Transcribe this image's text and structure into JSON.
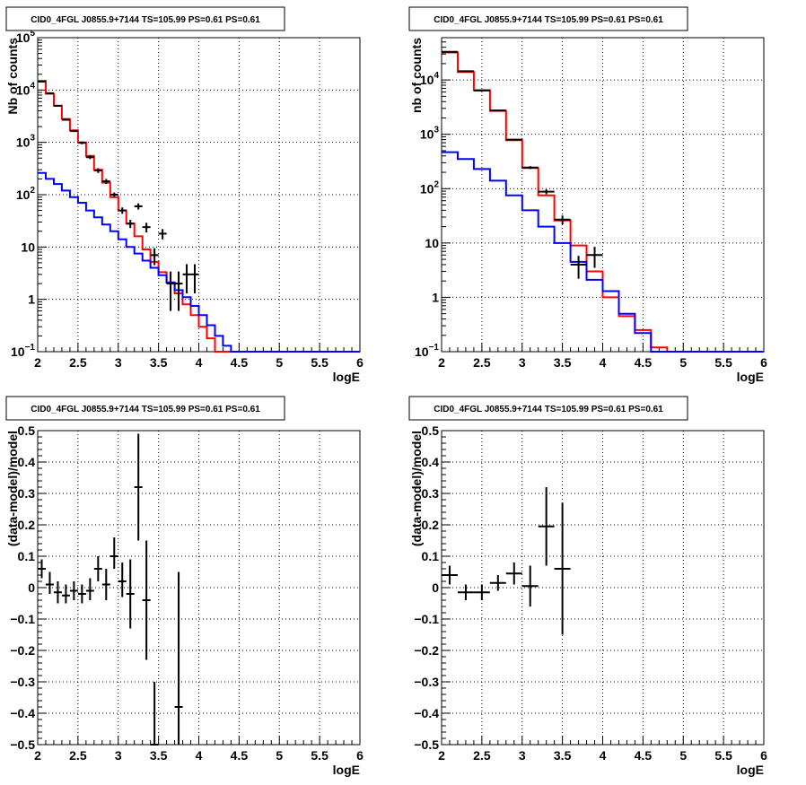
{
  "chart_data": [
    {
      "type": "line",
      "title": "CID0_4FGL J0855.9+7144 TS=105.99 PS=0.61 PS=0.61",
      "xlabel": "logE",
      "ylabel": "Nb of counts",
      "xlim": [
        2,
        6
      ],
      "ylim": [
        0.1,
        100000
      ],
      "yscale": "log",
      "grid": true,
      "xticks": [
        "2",
        "2.5",
        "3",
        "3.5",
        "4",
        "4.5",
        "5",
        "5.5",
        "6"
      ],
      "yticks": [
        {
          "v": 0.1,
          "base": "10",
          "exp": "−1"
        },
        {
          "v": 1,
          "label": "1"
        },
        {
          "v": 10,
          "label": "10"
        },
        {
          "v": 100,
          "base": "10",
          "exp": "2"
        },
        {
          "v": 1000,
          "base": "10",
          "exp": "3"
        },
        {
          "v": 10000,
          "base": "10",
          "exp": "4"
        },
        {
          "v": 100000,
          "base": "10",
          "exp": "5"
        }
      ],
      "series": [
        {
          "kind": "step",
          "color": "#ff0000",
          "edges": [
            2.0,
            2.1,
            2.2,
            2.3,
            2.4,
            2.5,
            2.6,
            2.7,
            2.8,
            2.9,
            3.0,
            3.1,
            3.2,
            3.3,
            3.4,
            3.5,
            3.6,
            3.7,
            3.8,
            3.9,
            4.0,
            4.1,
            4.2,
            4.3,
            4.4,
            4.5,
            4.6,
            4.7,
            4.8,
            4.9,
            5.0,
            5.1,
            5.2,
            5.3,
            5.4,
            5.5,
            5.6,
            5.7,
            5.8,
            5.9,
            6.0
          ],
          "values": [
            15000,
            8500,
            5000,
            2800,
            1700,
            1000,
            550,
            300,
            170,
            90,
            50,
            28,
            16,
            9,
            5.2,
            3.3,
            2.1,
            1.3,
            0.8,
            0.5,
            0.3,
            0.18,
            0.1,
            0.1,
            0.1,
            0.1,
            0.1,
            0.1,
            0.1,
            0.1,
            0.1,
            0.1,
            0.1,
            0.1,
            0.1,
            0.1,
            0.1,
            0.1,
            0.1,
            0.1
          ]
        },
        {
          "kind": "step",
          "color": "#0000ff",
          "edges": [
            2.0,
            2.1,
            2.2,
            2.3,
            2.4,
            2.5,
            2.6,
            2.7,
            2.8,
            2.9,
            3.0,
            3.1,
            3.2,
            3.3,
            3.4,
            3.5,
            3.6,
            3.7,
            3.8,
            3.9,
            4.0,
            4.1,
            4.2,
            4.3,
            4.4,
            4.5,
            4.6,
            4.7,
            4.8,
            4.9,
            5.0,
            5.1,
            5.2,
            5.3,
            5.4,
            5.5,
            5.6,
            5.7,
            5.8,
            5.9,
            6.0
          ],
          "values": [
            260,
            200,
            160,
            120,
            90,
            70,
            50,
            37,
            27,
            20,
            14,
            10,
            7.5,
            5.5,
            4.0,
            2.9,
            2.1,
            1.5,
            1.1,
            0.75,
            0.5,
            0.32,
            0.2,
            0.13,
            0.1,
            0.1,
            0.1,
            0.1,
            0.1,
            0.1,
            0.1,
            0.1,
            0.1,
            0.1,
            0.1,
            0.1,
            0.1,
            0.1,
            0.1,
            0.1
          ]
        },
        {
          "kind": "errorbar",
          "color": "#000000",
          "points": [
            {
              "x": 2.05,
              "y": 14500,
              "xerr": 0.05,
              "ylo": 14260,
              "yhi": 14740
            },
            {
              "x": 2.15,
              "y": 8700,
              "xerr": 0.05,
              "ylo": 8510,
              "yhi": 8890
            },
            {
              "x": 2.25,
              "y": 5000,
              "xerr": 0.05,
              "ylo": 4860,
              "yhi": 5140
            },
            {
              "x": 2.35,
              "y": 2700,
              "xerr": 0.05,
              "ylo": 2600,
              "yhi": 2800
            },
            {
              "x": 2.45,
              "y": 1650,
              "xerr": 0.05,
              "ylo": 1570,
              "yhi": 1730
            },
            {
              "x": 2.55,
              "y": 980,
              "xerr": 0.05,
              "ylo": 920,
              "yhi": 1040
            },
            {
              "x": 2.65,
              "y": 520,
              "xerr": 0.05,
              "ylo": 480,
              "yhi": 560
            },
            {
              "x": 2.75,
              "y": 290,
              "xerr": 0.05,
              "ylo": 260,
              "yhi": 320
            },
            {
              "x": 2.85,
              "y": 180,
              "xerr": 0.05,
              "ylo": 160,
              "yhi": 200
            },
            {
              "x": 2.95,
              "y": 100,
              "xerr": 0.05,
              "ylo": 90,
              "yhi": 110
            },
            {
              "x": 3.05,
              "y": 50,
              "xerr": 0.05,
              "ylo": 43,
              "yhi": 57
            },
            {
              "x": 3.15,
              "y": 28,
              "xerr": 0.05,
              "ylo": 23,
              "yhi": 33
            },
            {
              "x": 3.25,
              "y": 60,
              "xerr": 0.05,
              "ylo": 52,
              "yhi": 68
            },
            {
              "x": 3.35,
              "y": 24,
              "xerr": 0.05,
              "ylo": 19,
              "yhi": 29
            },
            {
              "x": 3.45,
              "y": 7,
              "xerr": 0.05,
              "ylo": 4.5,
              "yhi": 9.5
            },
            {
              "x": 3.55,
              "y": 18,
              "xerr": 0.05,
              "ylo": 14,
              "yhi": 22
            },
            {
              "x": 3.65,
              "y": 2,
              "xerr": 0.05,
              "ylo": 0.6,
              "yhi": 3.4
            },
            {
              "x": 3.75,
              "y": 2,
              "xerr": 0.05,
              "ylo": 0.6,
              "yhi": 3.4
            },
            {
              "x": 3.85,
              "y": 3,
              "xerr": 0.05,
              "ylo": 1.3,
              "yhi": 4.7
            },
            {
              "x": 3.95,
              "y": 3,
              "xerr": 0.05,
              "ylo": 1.3,
              "yhi": 4.7
            }
          ]
        }
      ]
    },
    {
      "type": "line",
      "title": "CID0_4FGL J0855.9+7144 TS=105.99 PS=0.61 PS=0.61",
      "xlabel": "logE",
      "ylabel": "nb of counts",
      "xlim": [
        2,
        6
      ],
      "ylim": [
        0.1,
        60000
      ],
      "yscale": "log",
      "grid": true,
      "xticks": [
        "2",
        "2.5",
        "3",
        "3.5",
        "4",
        "4.5",
        "5",
        "5.5",
        "6"
      ],
      "yticks": [
        {
          "v": 0.1,
          "base": "10",
          "exp": "−1"
        },
        {
          "v": 1,
          "label": "1"
        },
        {
          "v": 10,
          "label": "10"
        },
        {
          "v": 100,
          "base": "10",
          "exp": "2"
        },
        {
          "v": 1000,
          "base": "10",
          "exp": "3"
        },
        {
          "v": 10000,
          "base": "10",
          "exp": "4"
        }
      ],
      "series": [
        {
          "kind": "step",
          "color": "#ff0000",
          "edges": [
            2.0,
            2.2,
            2.4,
            2.6,
            2.8,
            3.0,
            3.2,
            3.4,
            3.6,
            3.8,
            4.0,
            4.2,
            4.4,
            4.6,
            4.8,
            5.0,
            5.2,
            5.4,
            5.6,
            5.8,
            6.0
          ],
          "values": [
            32000,
            14000,
            6500,
            2700,
            780,
            240,
            75,
            26,
            9,
            3,
            1.0,
            0.45,
            0.25,
            0.12,
            0.1,
            0.1,
            0.1,
            0.1,
            0.1,
            0.1
          ]
        },
        {
          "kind": "step",
          "color": "#0000ff",
          "edges": [
            2.0,
            2.2,
            2.4,
            2.6,
            2.8,
            3.0,
            3.2,
            3.4,
            3.6,
            3.8,
            4.0,
            4.2,
            4.4,
            4.6,
            4.8,
            5.0,
            5.2,
            5.4,
            5.6,
            5.8,
            6.0
          ],
          "values": [
            470,
            350,
            230,
            140,
            75,
            40,
            20,
            10,
            4.5,
            2.1,
            1.3,
            0.5,
            0.22,
            0.1,
            0.1,
            0.1,
            0.1,
            0.1,
            0.1,
            0.1
          ]
        },
        {
          "kind": "errorbar",
          "color": "#000000",
          "points": [
            {
              "x": 2.1,
              "y": 33000,
              "xerr": 0.1,
              "ylo": 32700,
              "yhi": 33300
            },
            {
              "x": 2.3,
              "y": 14500,
              "xerr": 0.1,
              "ylo": 14300,
              "yhi": 14700
            },
            {
              "x": 2.5,
              "y": 6400,
              "xerr": 0.1,
              "ylo": 6300,
              "yhi": 6500
            },
            {
              "x": 2.7,
              "y": 2750,
              "xerr": 0.1,
              "ylo": 2680,
              "yhi": 2820
            },
            {
              "x": 2.9,
              "y": 800,
              "xerr": 0.1,
              "ylo": 770,
              "yhi": 830
            },
            {
              "x": 3.1,
              "y": 245,
              "xerr": 0.1,
              "ylo": 230,
              "yhi": 260
            },
            {
              "x": 3.3,
              "y": 88,
              "xerr": 0.1,
              "ylo": 79,
              "yhi": 97
            },
            {
              "x": 3.5,
              "y": 27,
              "xerr": 0.1,
              "ylo": 22,
              "yhi": 32
            },
            {
              "x": 3.7,
              "y": 4,
              "xerr": 0.1,
              "ylo": 2.2,
              "yhi": 5.8
            },
            {
              "x": 3.9,
              "y": 6,
              "xerr": 0.1,
              "ylo": 3.5,
              "yhi": 8.5
            }
          ]
        }
      ]
    },
    {
      "type": "scatter",
      "title": "CID0_4FGL J0855.9+7144 TS=105.99 PS=0.61 PS=0.61",
      "xlabel": "logE",
      "ylabel": "(data-model)/model",
      "xlim": [
        2,
        6
      ],
      "ylim": [
        -0.5,
        0.5
      ],
      "yscale": "linear",
      "grid": true,
      "xticks": [
        "2",
        "2.5",
        "3",
        "3.5",
        "4",
        "4.5",
        "5",
        "5.5",
        "6"
      ],
      "yticks": [
        {
          "v": -0.5,
          "label": "−0.5"
        },
        {
          "v": -0.4,
          "label": "−0.4"
        },
        {
          "v": -0.3,
          "label": "−0.3"
        },
        {
          "v": -0.2,
          "label": "−0.2"
        },
        {
          "v": -0.1,
          "label": "−0.1"
        },
        {
          "v": 0,
          "label": "0"
        },
        {
          "v": 0.1,
          "label": "0.1"
        },
        {
          "v": 0.2,
          "label": "0.2"
        },
        {
          "v": 0.3,
          "label": "0.3"
        },
        {
          "v": 0.4,
          "label": "0.4"
        },
        {
          "v": 0.5,
          "label": "0.5"
        }
      ],
      "series": [
        {
          "kind": "errorbar",
          "color": "#000000",
          "points": [
            {
              "x": 2.05,
              "y": 0.06,
              "xerr": 0.05,
              "ylo": 0.03,
              "yhi": 0.09
            },
            {
              "x": 2.15,
              "y": 0.01,
              "xerr": 0.05,
              "ylo": -0.02,
              "yhi": 0.05
            },
            {
              "x": 2.25,
              "y": -0.015,
              "xerr": 0.05,
              "ylo": -0.05,
              "yhi": 0.02
            },
            {
              "x": 2.35,
              "y": -0.025,
              "xerr": 0.05,
              "ylo": -0.05,
              "yhi": 0.01
            },
            {
              "x": 2.45,
              "y": -0.01,
              "xerr": 0.05,
              "ylo": -0.04,
              "yhi": 0.02
            },
            {
              "x": 2.55,
              "y": -0.02,
              "xerr": 0.05,
              "ylo": -0.05,
              "yhi": 0.01
            },
            {
              "x": 2.65,
              "y": -0.01,
              "xerr": 0.05,
              "ylo": -0.04,
              "yhi": 0.03
            },
            {
              "x": 2.75,
              "y": 0.06,
              "xerr": 0.05,
              "ylo": 0.02,
              "yhi": 0.1
            },
            {
              "x": 2.85,
              "y": 0.01,
              "xerr": 0.05,
              "ylo": -0.04,
              "yhi": 0.06
            },
            {
              "x": 2.95,
              "y": 0.1,
              "xerr": 0.05,
              "ylo": 0.06,
              "yhi": 0.16
            },
            {
              "x": 3.05,
              "y": 0.02,
              "xerr": 0.05,
              "ylo": -0.03,
              "yhi": 0.08
            },
            {
              "x": 3.15,
              "y": -0.02,
              "xerr": 0.05,
              "ylo": -0.13,
              "yhi": 0.09
            },
            {
              "x": 3.25,
              "y": 0.32,
              "xerr": 0.05,
              "ylo": 0.15,
              "yhi": 0.49
            },
            {
              "x": 3.35,
              "y": -0.04,
              "xerr": 0.05,
              "ylo": -0.23,
              "yhi": 0.15
            },
            {
              "x": 3.45,
              "y": -0.5,
              "xerr": 0.05,
              "ylo": -0.5,
              "yhi": -0.3
            },
            {
              "x": 3.75,
              "y": -0.38,
              "xerr": 0.05,
              "ylo": -0.5,
              "yhi": 0.05
            }
          ]
        }
      ]
    },
    {
      "type": "scatter",
      "title": "CID0_4FGL J0855.9+7144 TS=105.99 PS=0.61 PS=0.61",
      "xlabel": "logE",
      "ylabel": "(data-model)/model",
      "xlim": [
        2,
        6
      ],
      "ylim": [
        -0.5,
        0.5
      ],
      "yscale": "linear",
      "grid": true,
      "xticks": [
        "2",
        "2.5",
        "3",
        "3.5",
        "4",
        "4.5",
        "5",
        "5.5",
        "6"
      ],
      "yticks": [
        {
          "v": -0.5,
          "label": "−0.5"
        },
        {
          "v": -0.4,
          "label": "−0.4"
        },
        {
          "v": -0.3,
          "label": "−0.3"
        },
        {
          "v": -0.2,
          "label": "−0.2"
        },
        {
          "v": -0.1,
          "label": "−0.1"
        },
        {
          "v": 0,
          "label": "0"
        },
        {
          "v": 0.1,
          "label": "0.1"
        },
        {
          "v": 0.2,
          "label": "0.2"
        },
        {
          "v": 0.3,
          "label": "0.3"
        },
        {
          "v": 0.4,
          "label": "0.4"
        },
        {
          "v": 0.5,
          "label": "0.5"
        }
      ],
      "series": [
        {
          "kind": "errorbar",
          "color": "#000000",
          "points": [
            {
              "x": 2.1,
              "y": 0.04,
              "xerr": 0.1,
              "ylo": 0.01,
              "yhi": 0.07
            },
            {
              "x": 2.3,
              "y": -0.015,
              "xerr": 0.1,
              "ylo": -0.04,
              "yhi": 0.01
            },
            {
              "x": 2.5,
              "y": -0.015,
              "xerr": 0.1,
              "ylo": -0.04,
              "yhi": 0.01
            },
            {
              "x": 2.7,
              "y": 0.015,
              "xerr": 0.1,
              "ylo": -0.01,
              "yhi": 0.04
            },
            {
              "x": 2.9,
              "y": 0.045,
              "xerr": 0.1,
              "ylo": 0.01,
              "yhi": 0.08
            },
            {
              "x": 3.1,
              "y": 0.005,
              "xerr": 0.1,
              "ylo": -0.06,
              "yhi": 0.07
            },
            {
              "x": 3.3,
              "y": 0.195,
              "xerr": 0.1,
              "ylo": 0.07,
              "yhi": 0.32
            },
            {
              "x": 3.5,
              "y": 0.06,
              "xerr": 0.1,
              "ylo": -0.15,
              "yhi": 0.27
            }
          ]
        }
      ]
    }
  ]
}
